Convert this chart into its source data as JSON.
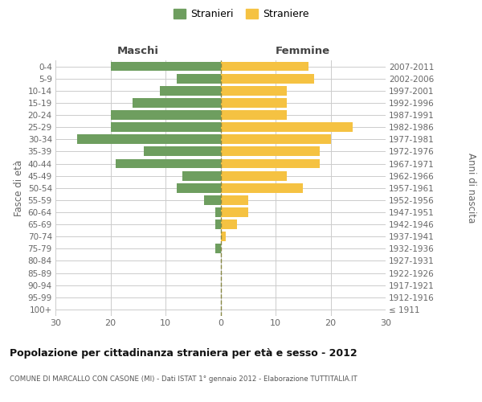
{
  "age_groups": [
    "100+",
    "95-99",
    "90-94",
    "85-89",
    "80-84",
    "75-79",
    "70-74",
    "65-69",
    "60-64",
    "55-59",
    "50-54",
    "45-49",
    "40-44",
    "35-39",
    "30-34",
    "25-29",
    "20-24",
    "15-19",
    "10-14",
    "5-9",
    "0-4"
  ],
  "birth_years": [
    "≤ 1911",
    "1912-1916",
    "1917-1921",
    "1922-1926",
    "1927-1931",
    "1932-1936",
    "1937-1941",
    "1942-1946",
    "1947-1951",
    "1952-1956",
    "1957-1961",
    "1962-1966",
    "1967-1971",
    "1972-1976",
    "1977-1981",
    "1982-1986",
    "1987-1991",
    "1992-1996",
    "1997-2001",
    "2002-2006",
    "2007-2011"
  ],
  "maschi": [
    0,
    0,
    0,
    0,
    0,
    1,
    0,
    1,
    1,
    3,
    8,
    7,
    19,
    14,
    26,
    20,
    20,
    16,
    11,
    8,
    20
  ],
  "femmine": [
    0,
    0,
    0,
    0,
    0,
    0,
    1,
    3,
    5,
    5,
    15,
    12,
    18,
    18,
    20,
    24,
    12,
    12,
    12,
    17,
    16
  ],
  "maschi_color": "#6e9e5f",
  "femmine_color": "#f5c242",
  "grid_color": "#cccccc",
  "center_line_color": "#888844",
  "title": "Popolazione per cittadinanza straniera per età e sesso - 2012",
  "subtitle": "COMUNE DI MARCALLO CON CASONE (MI) - Dati ISTAT 1° gennaio 2012 - Elaborazione TUTTITALIA.IT",
  "ylabel_left": "Fasce di età",
  "ylabel_right": "Anni di nascita",
  "legend_maschi": "Stranieri",
  "legend_femmine": "Straniere",
  "xlim": 30,
  "maschi_header": "Maschi",
  "femmine_header": "Femmine",
  "bg_color": "#ffffff"
}
